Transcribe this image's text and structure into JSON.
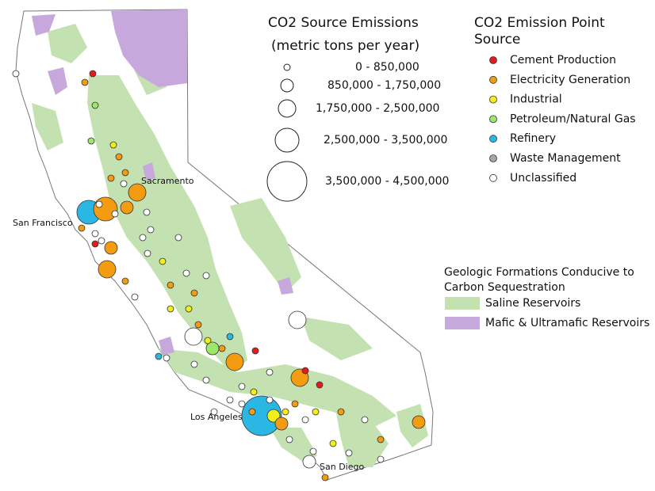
{
  "size_legend": {
    "title": "CO2 Source Emissions",
    "subtitle": "(metric tons per year)",
    "classes": [
      "0 - 850,000",
      "850,000 - 1,750,000",
      "1,750,000 - 2,500,000",
      "2,500,000 - 3,500,000",
      "3,500,000 - 4,500,000"
    ]
  },
  "source_legend": {
    "title_lines": [
      "CO2 Emission Point",
      "Source"
    ],
    "items": [
      {
        "name": "Cement Production",
        "color": "#e41a1c"
      },
      {
        "name": "Electricity Generation",
        "color": "#f39c12"
      },
      {
        "name": "Industrial",
        "color": "#f2ef1a"
      },
      {
        "name": "Petroleum/Natural Gas",
        "color": "#9be86a"
      },
      {
        "name": "Refinery",
        "color": "#2bb7e3"
      },
      {
        "name": "Waste Management",
        "color": "#a6a6a6"
      },
      {
        "name": "Unclassified",
        "color": "#ffffff"
      }
    ]
  },
  "formation_legend": {
    "title_lines": [
      "Geologic Formations Conducive to",
      "Carbon Sequestration"
    ],
    "items": [
      {
        "name": "Saline Reservoirs",
        "color": "#c4e2b1"
      },
      {
        "name": "Mafic & Ultramafic Reservoirs",
        "color": "#c6a8dd"
      }
    ]
  },
  "cities": [
    "Sacramento",
    "San Francisco",
    "Los Angeles",
    "San Diego"
  ]
}
